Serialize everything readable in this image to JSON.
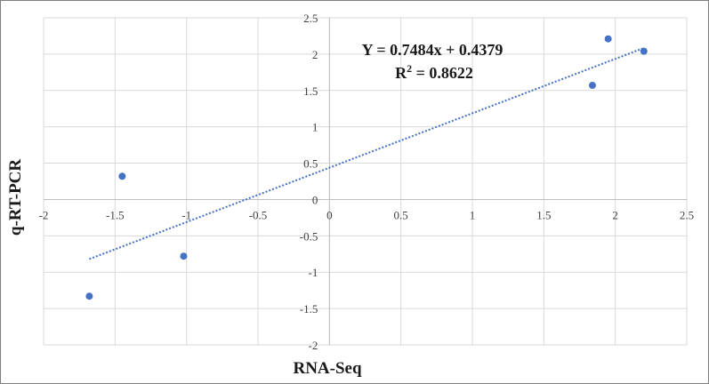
{
  "chart_data": {
    "type": "scatter",
    "xlabel": "RNA-Seq",
    "ylabel": "q-RT-PCR",
    "xlim": [
      -2,
      2.5
    ],
    "ylim": [
      -2,
      2.5
    ],
    "x_ticks": [
      -2,
      -1.5,
      -1,
      -0.5,
      0,
      0.5,
      1,
      1.5,
      2,
      2.5
    ],
    "y_ticks": [
      -2,
      -1.5,
      -1,
      -0.5,
      0,
      0.5,
      1,
      1.5,
      2,
      2.5
    ],
    "grid": true,
    "points": [
      {
        "x": -1.68,
        "y": -1.33
      },
      {
        "x": -1.45,
        "y": 0.32
      },
      {
        "x": -1.02,
        "y": -0.78
      },
      {
        "x": 1.84,
        "y": 1.57
      },
      {
        "x": 1.95,
        "y": 2.21
      },
      {
        "x": 2.2,
        "y": 2.04
      }
    ],
    "trendline": {
      "slope": 0.7484,
      "intercept": 0.4379,
      "x_range": [
        -1.68,
        2.2
      ],
      "style": "dotted"
    },
    "equation_text": "Y = 0.7484x + 0.4379",
    "r2_prefix": "R",
    "r2_sup": "2",
    "r2_value": " = 0.8622",
    "colors": {
      "points": "#4472c4",
      "trendline": "#4472c4",
      "grid": "#d9d9d9",
      "axis": "#bfbfbf"
    }
  }
}
